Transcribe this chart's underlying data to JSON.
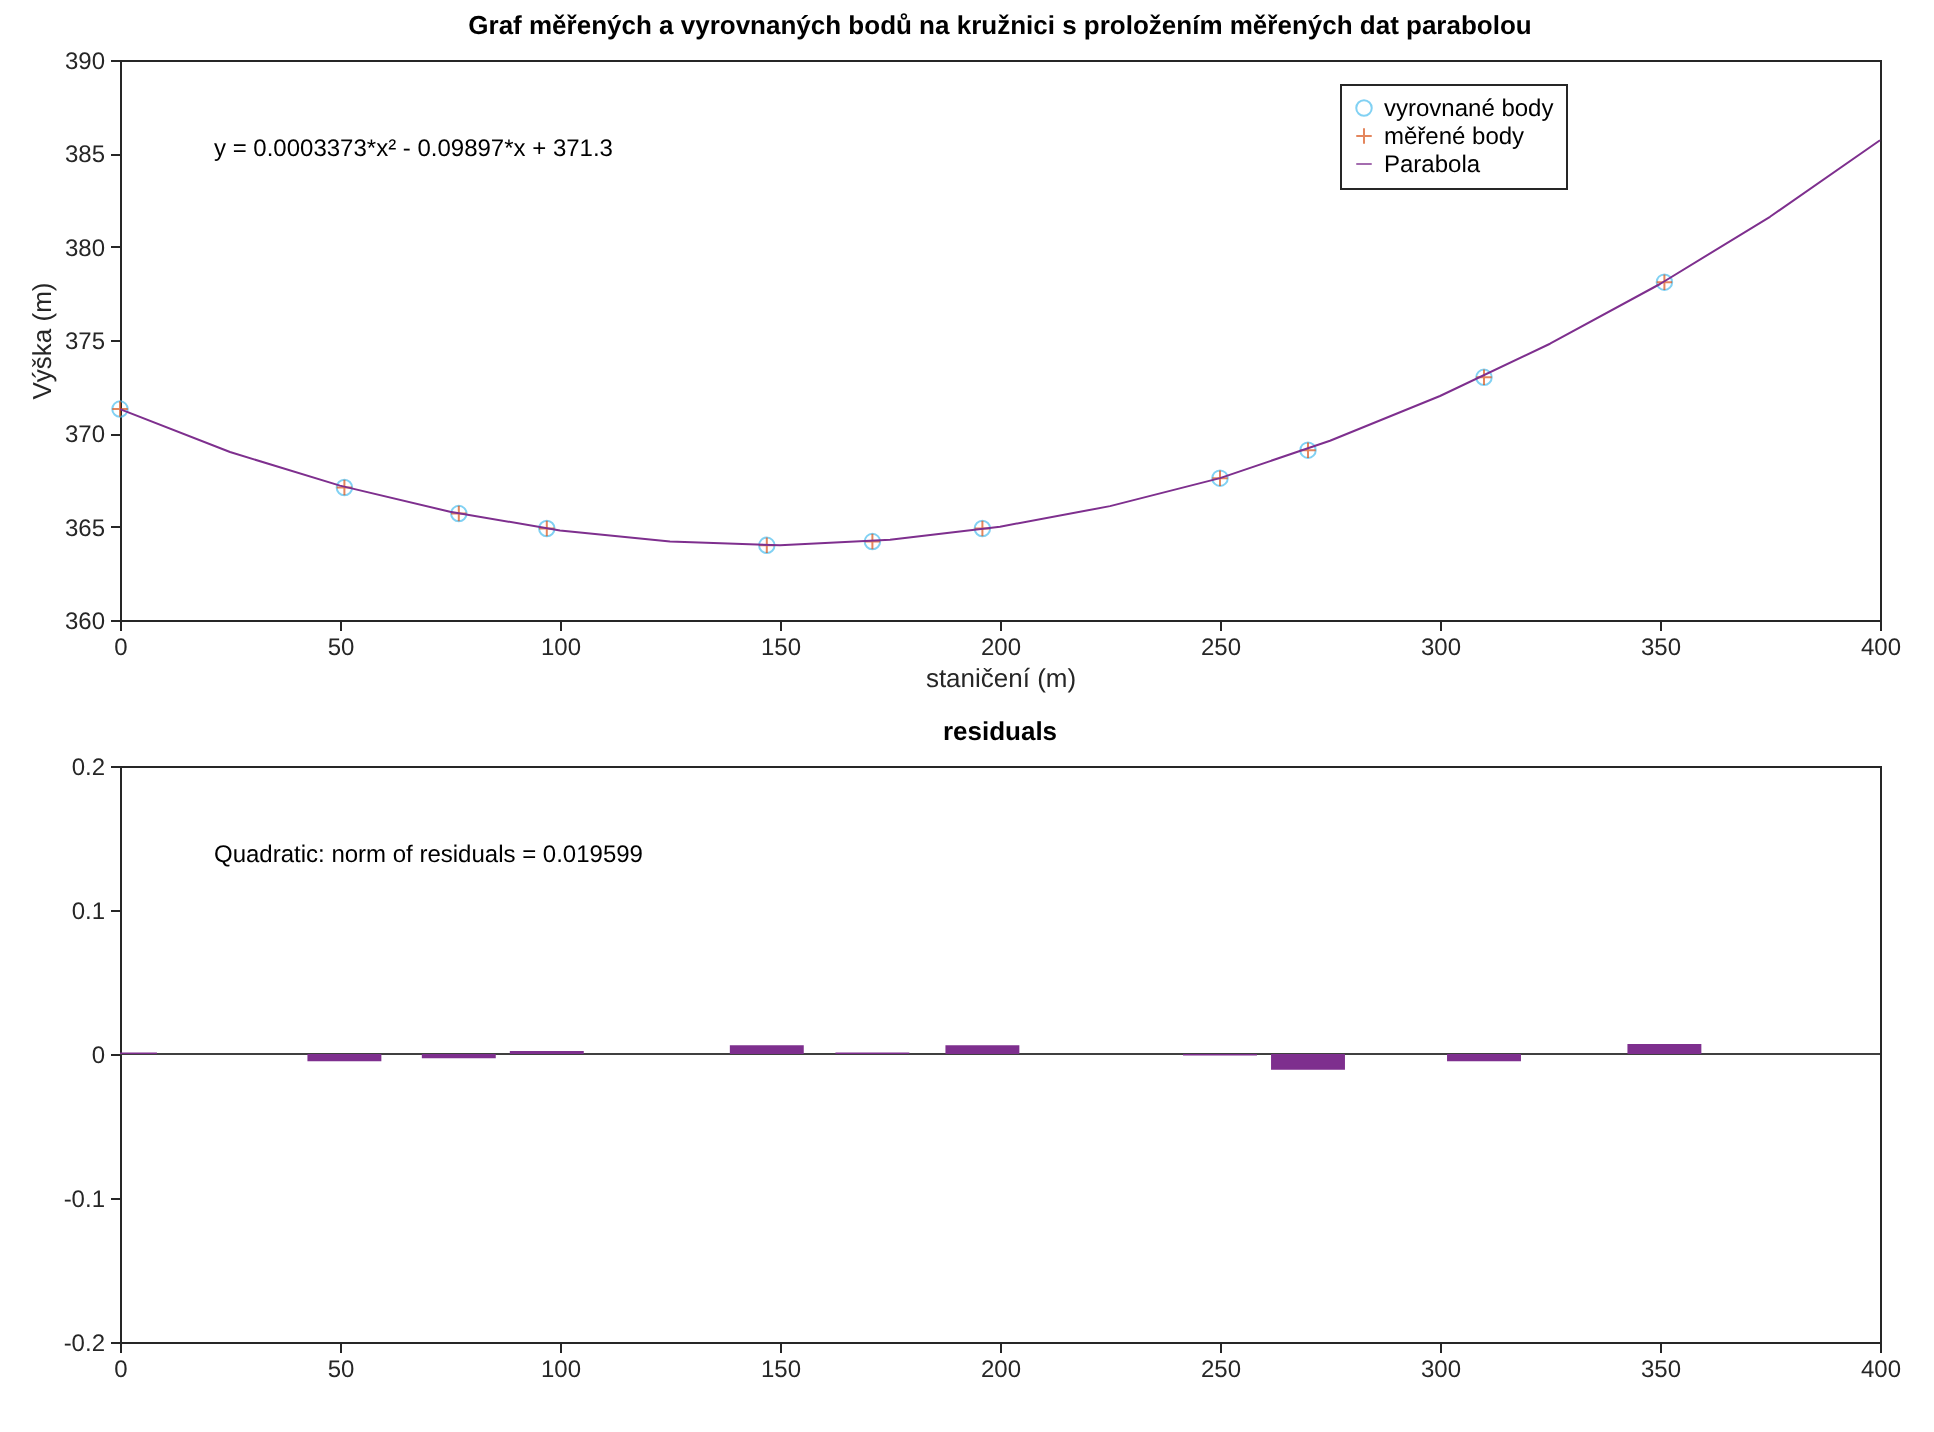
{
  "chart_data": [
    {
      "type": "scatter",
      "title": "Graf měřených a vyrovnaných bodů na kružnici s proložením měřených dat parabolou",
      "xlabel": "staničení (m)",
      "ylabel": "Výška (m)",
      "xlim": [
        0,
        400
      ],
      "xticks": [
        0,
        50,
        100,
        150,
        200,
        250,
        300,
        350,
        400
      ],
      "ylim": [
        360,
        390
      ],
      "yticks": [
        360,
        365,
        370,
        375,
        380,
        385,
        390
      ],
      "grid": false,
      "legend": "top right",
      "annotations": [
        "y = 0.0003373*x² - 0.09897*x + 371.3"
      ],
      "series": [
        {
          "name": "vyrovnané body",
          "color": "#4dbeee",
          "marker": "circle",
          "x": [
            0,
            51,
            77,
            97,
            147,
            171,
            196,
            250,
            270,
            310,
            351
          ],
          "values": [
            371.3,
            367.1,
            365.7,
            364.9,
            364.0,
            364.2,
            364.9,
            367.6,
            369.1,
            373.0,
            378.1
          ]
        },
        {
          "name": "měřené body",
          "color": "#d95319",
          "marker": "cross",
          "x": [
            0,
            51,
            77,
            97,
            147,
            171,
            196,
            250,
            270,
            310,
            351
          ],
          "values": [
            371.3,
            367.1,
            365.7,
            364.9,
            364.0,
            364.2,
            364.9,
            367.6,
            369.1,
            373.0,
            378.1
          ]
        },
        {
          "name": "Parabola",
          "color": "#7e2f8e",
          "type": "line",
          "marker": "none",
          "x": [
            0,
            25,
            50,
            75,
            100,
            125,
            150,
            175,
            200,
            225,
            250,
            275,
            300,
            325,
            350,
            375,
            400
          ],
          "values": [
            371.3,
            369.0,
            367.2,
            365.8,
            364.8,
            364.2,
            364.0,
            364.3,
            365.0,
            366.1,
            367.6,
            369.6,
            372.0,
            374.8,
            378.0,
            381.6,
            385.7
          ]
        }
      ]
    },
    {
      "type": "bar",
      "title": "residuals",
      "x": [
        0,
        51,
        77,
        97,
        147,
        171,
        196,
        250,
        270,
        310,
        351
      ],
      "values": [
        0.001,
        -0.005,
        -0.003,
        0.002,
        0.006,
        0.001,
        0.006,
        -0.001,
        -0.011,
        -0.005,
        0.007
      ],
      "color": "#7e2f8e",
      "xlim": [
        0,
        400
      ],
      "xticks": [
        0,
        50,
        100,
        150,
        200,
        250,
        300,
        350,
        400
      ],
      "ylim": [
        -0.2,
        0.2
      ],
      "yticks": [
        -0.2,
        -0.1,
        0,
        0.1,
        0.2
      ],
      "grid": false,
      "annotations": [
        "Quadratic: norm of residuals = 0.019599"
      ],
      "ref_lines": [
        {
          "axis": "y",
          "value": 0,
          "color": "#404040"
        }
      ]
    }
  ]
}
